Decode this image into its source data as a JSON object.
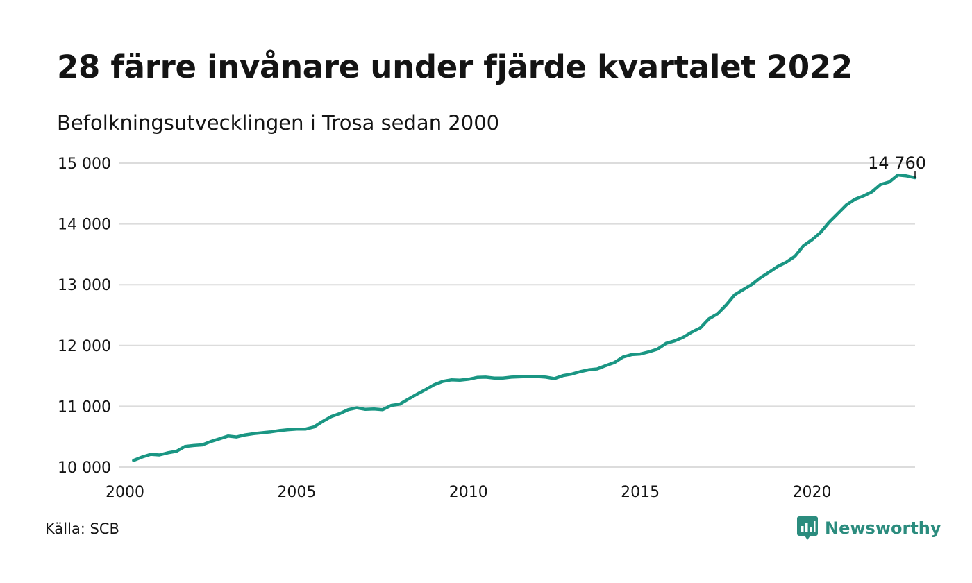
{
  "header": {
    "title": "28 färre invånare under fjärde kvartalet 2022",
    "subtitle": "Befolkningsutvecklingen i Trosa sedan 2000"
  },
  "footer": {
    "source": "Källa: SCB",
    "brand": "Newsworthy"
  },
  "colors": {
    "line": "#1a9683",
    "grid": "#dcdcdc",
    "brand": "#2b8c7e"
  },
  "brand_icon": "newsworthy-logo-icon",
  "chart_data": {
    "type": "line",
    "title": "28 färre invånare under fjärde kvartalet 2022",
    "subtitle": "Befolkningsutvecklingen i Trosa sedan 2000",
    "xlabel": "",
    "ylabel": "",
    "xlim": [
      2000,
      2023
    ],
    "ylim": [
      10000,
      15000
    ],
    "x_ticks": [
      2000,
      2005,
      2010,
      2015,
      2020
    ],
    "x_tick_labels": [
      "2000",
      "2005",
      "2010",
      "2015",
      "2020"
    ],
    "y_ticks": [
      10000,
      11000,
      12000,
      13000,
      14000,
      15000
    ],
    "y_tick_labels": [
      "10 000",
      "11 000",
      "12 000",
      "13 000",
      "14 000",
      "15 000"
    ],
    "grid": "horizontal",
    "end_label": "14 760",
    "series": [
      {
        "x": [
          2000.25,
          2000.5,
          2000.75,
          2001.0,
          2001.25,
          2001.5,
          2001.75,
          2002.0,
          2002.25,
          2002.5,
          2002.75,
          2003.0,
          2003.25,
          2003.5,
          2003.75,
          2004.0,
          2004.25,
          2004.5,
          2004.75,
          2005.0,
          2005.25,
          2005.5,
          2005.75,
          2006.0,
          2006.25,
          2006.5,
          2006.75,
          2007.0,
          2007.25,
          2007.5,
          2007.75,
          2008.0,
          2008.25,
          2008.5,
          2008.75,
          2009.0,
          2009.25,
          2009.5,
          2009.75,
          2010.0,
          2010.25,
          2010.5,
          2010.75,
          2011.0,
          2011.25,
          2011.5,
          2011.75,
          2012.0,
          2012.25,
          2012.5,
          2012.75,
          2013.0,
          2013.25,
          2013.5,
          2013.75,
          2014.0,
          2014.25,
          2014.5,
          2014.75,
          2015.0,
          2015.25,
          2015.5,
          2015.75,
          2016.0,
          2016.25,
          2016.5,
          2016.75,
          2017.0,
          2017.25,
          2017.5,
          2017.75,
          2018.0,
          2018.25,
          2018.5,
          2018.75,
          2019.0,
          2019.25,
          2019.5,
          2019.75,
          2020.0,
          2020.25,
          2020.5,
          2020.75,
          2021.0,
          2021.25,
          2021.5,
          2021.75,
          2022.0,
          2022.25,
          2022.5,
          2022.75,
          2023.0
        ],
        "values": [
          10110,
          10165,
          10210,
          10200,
          10235,
          10260,
          10340,
          10355,
          10365,
          10420,
          10465,
          10510,
          10495,
          10530,
          10550,
          10565,
          10580,
          10600,
          10615,
          10625,
          10625,
          10660,
          10750,
          10830,
          10880,
          10945,
          10975,
          10950,
          10955,
          10945,
          11015,
          11035,
          11120,
          11200,
          11275,
          11355,
          11410,
          11435,
          11430,
          11445,
          11475,
          11480,
          11465,
          11465,
          11480,
          11485,
          11490,
          11490,
          11480,
          11455,
          11505,
          11530,
          11570,
          11600,
          11615,
          11670,
          11720,
          11810,
          11850,
          11860,
          11895,
          11940,
          12035,
          12075,
          12135,
          12220,
          12290,
          12440,
          12520,
          12665,
          12835,
          12920,
          13005,
          13115,
          13205,
          13300,
          13370,
          13465,
          13640,
          13740,
          13860,
          14030,
          14170,
          14310,
          14405,
          14460,
          14530,
          14650,
          14690,
          14805,
          14790,
          14760
        ]
      }
    ]
  }
}
